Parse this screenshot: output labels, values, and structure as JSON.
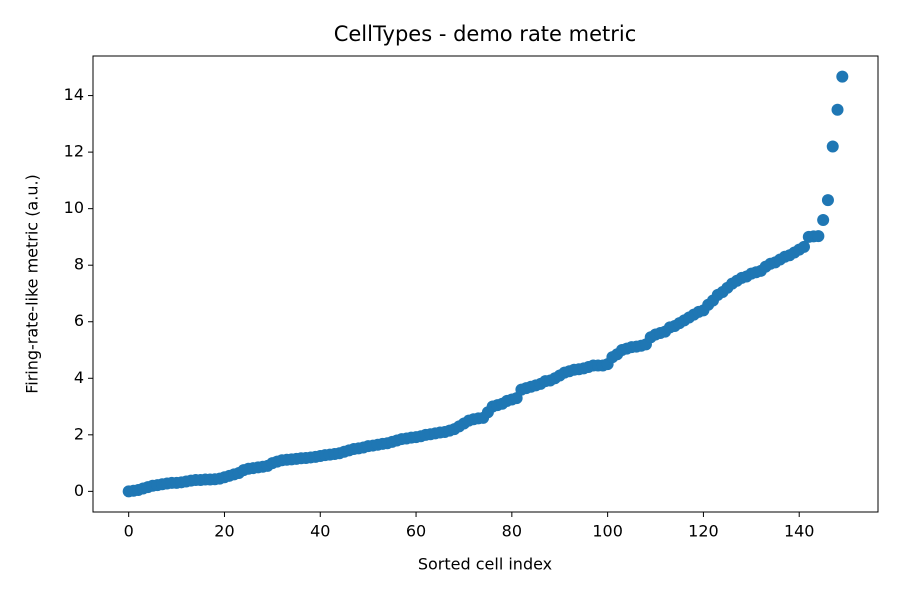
{
  "chart_data": {
    "type": "scatter",
    "title": "CellTypes - demo rate metric",
    "x_label": "Sorted cell index",
    "y_label": "Firing-rate-like metric (a.u.)",
    "color": "#1f77b4",
    "x": [
      0,
      1,
      2,
      3,
      4,
      5,
      6,
      7,
      8,
      9,
      10,
      11,
      12,
      13,
      14,
      15,
      16,
      17,
      18,
      19,
      20,
      21,
      22,
      23,
      24,
      25,
      26,
      27,
      28,
      29,
      30,
      31,
      32,
      33,
      34,
      35,
      36,
      37,
      38,
      39,
      40,
      41,
      42,
      43,
      44,
      45,
      46,
      47,
      48,
      49,
      50,
      51,
      52,
      53,
      54,
      55,
      56,
      57,
      58,
      59,
      60,
      61,
      62,
      63,
      64,
      65,
      66,
      67,
      68,
      69,
      70,
      71,
      72,
      73,
      74,
      75,
      76,
      77,
      78,
      79,
      80,
      81,
      82,
      83,
      84,
      85,
      86,
      87,
      88,
      89,
      90,
      91,
      92,
      93,
      94,
      95,
      96,
      97,
      98,
      99,
      100,
      101,
      102,
      103,
      104,
      105,
      106,
      107,
      108,
      109,
      110,
      111,
      112,
      113,
      114,
      115,
      116,
      117,
      118,
      119,
      120,
      121,
      122,
      123,
      124,
      125,
      126,
      127,
      128,
      129,
      130,
      131,
      132,
      133,
      134,
      135,
      136,
      137,
      138,
      139,
      140,
      141,
      142,
      143,
      144,
      145,
      146,
      147,
      148,
      149
    ],
    "values": [
      0,
      0.02,
      0.05,
      0.1,
      0.15,
      0.2,
      0.22,
      0.25,
      0.28,
      0.3,
      0.3,
      0.32,
      0.35,
      0.38,
      0.4,
      0.4,
      0.42,
      0.42,
      0.43,
      0.45,
      0.5,
      0.55,
      0.6,
      0.65,
      0.75,
      0.8,
      0.82,
      0.85,
      0.87,
      0.9,
      1.0,
      1.05,
      1.1,
      1.12,
      1.13,
      1.15,
      1.17,
      1.18,
      1.2,
      1.22,
      1.25,
      1.28,
      1.3,
      1.32,
      1.35,
      1.4,
      1.45,
      1.5,
      1.52,
      1.55,
      1.6,
      1.62,
      1.65,
      1.68,
      1.7,
      1.75,
      1.8,
      1.85,
      1.87,
      1.9,
      1.92,
      1.95,
      2.0,
      2.02,
      2.05,
      2.08,
      2.1,
      2.15,
      2.2,
      2.3,
      2.4,
      2.5,
      2.55,
      2.58,
      2.6,
      2.8,
      3.0,
      3.05,
      3.1,
      3.2,
      3.25,
      3.3,
      3.6,
      3.65,
      3.7,
      3.75,
      3.8,
      3.9,
      3.92,
      4.0,
      4.1,
      4.2,
      4.25,
      4.3,
      4.32,
      4.35,
      4.4,
      4.45,
      4.45,
      4.45,
      4.5,
      4.75,
      4.85,
      5.0,
      5.05,
      5.1,
      5.12,
      5.15,
      5.2,
      5.45,
      5.55,
      5.6,
      5.65,
      5.8,
      5.85,
      5.95,
      6.05,
      6.15,
      6.25,
      6.35,
      6.4,
      6.6,
      6.75,
      6.95,
      7.05,
      7.2,
      7.35,
      7.45,
      7.55,
      7.6,
      7.7,
      7.75,
      7.8,
      7.95,
      8.05,
      8.1,
      8.2,
      8.3,
      8.35,
      8.45,
      8.55,
      8.65,
      9.0,
      9.02,
      9.03,
      9.6,
      10.3,
      12.2,
      13.5,
      14.67
    ],
    "xlim": [
      -7.45,
      156.45
    ],
    "ylim": [
      -0.73,
      15.4
    ],
    "xticks": [
      0,
      20,
      40,
      60,
      80,
      100,
      120,
      140
    ],
    "yticks": [
      0,
      2,
      4,
      6,
      8,
      10,
      12,
      14
    ]
  }
}
